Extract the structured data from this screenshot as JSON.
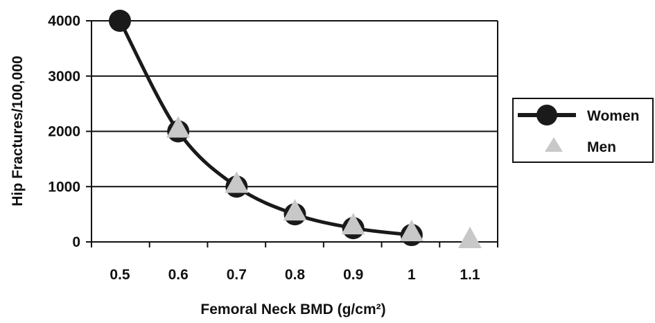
{
  "chart_data": {
    "type": "line",
    "title": "",
    "xlabel": "Femoral Neck BMD (g/cm²)",
    "ylabel": "Hip Fractures/100,000",
    "x_ticks": [
      "0.5",
      "0.6",
      "0.7",
      "0.8",
      "0.9",
      "1",
      "1.1"
    ],
    "y_ticks": [
      "0",
      "1000",
      "2000",
      "3000",
      "4000"
    ],
    "ylim": [
      0,
      4000
    ],
    "grid": "horizontal",
    "legend_position": "right",
    "series": [
      {
        "name": "Women",
        "marker": "circle",
        "line": true,
        "color": "#1a1a1a",
        "x": [
          0.5,
          0.6,
          0.7,
          0.8,
          0.9,
          1.0
        ],
        "y": [
          4000,
          2000,
          1000,
          500,
          250,
          125
        ]
      },
      {
        "name": "Men",
        "marker": "triangle",
        "line": false,
        "color": "#c8c8c8",
        "x": [
          0.6,
          0.7,
          0.8,
          0.9,
          1.0,
          1.1
        ],
        "y": [
          2000,
          1000,
          500,
          250,
          125,
          0
        ]
      }
    ]
  }
}
